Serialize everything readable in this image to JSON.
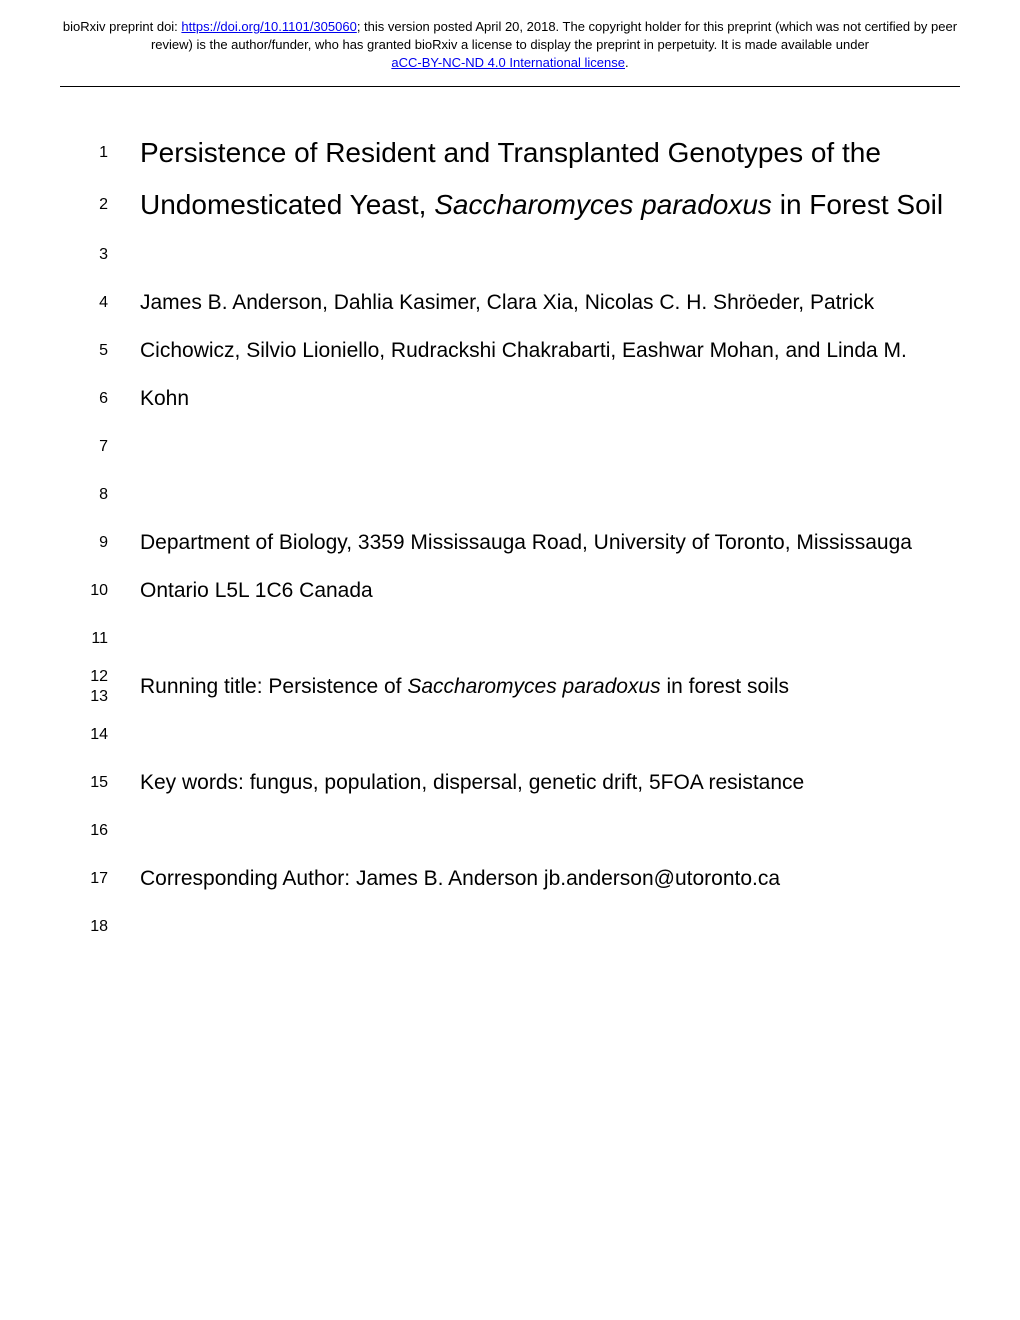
{
  "header": {
    "prefix": "bioRxiv preprint doi: ",
    "doi_url": "https://doi.org/10.1101/305060",
    "version_text": "; this version posted April 20, 2018. ",
    "copyright_text": "The copyright holder for this preprint (which was not certified by peer review) is the author/funder, who has granted bioRxiv a license to display the preprint in perpetuity. It is made available under ",
    "license_text": "aCC-BY-NC-ND 4.0 International license",
    "period": "."
  },
  "lines": {
    "l1": {
      "num": "1",
      "text": "Persistence of Resident and Transplanted Genotypes of the"
    },
    "l2": {
      "num": "2",
      "text_before": "Undomesticated Yeast, ",
      "italic": "Saccharomyces paradoxus",
      "text_after": " in Forest Soil"
    },
    "l3": {
      "num": "3",
      "text": ""
    },
    "l4": {
      "num": "4",
      "text": "James B. Anderson, Dahlia Kasimer, Clara Xia, Nicolas C.  H. Shröeder, Patrick"
    },
    "l5": {
      "num": "5",
      "text": "Cichowicz, Silvio Lioniello, Rudrackshi Chakrabarti, Eashwar Mohan, and Linda M."
    },
    "l6": {
      "num": "6",
      "text": "Kohn"
    },
    "l7": {
      "num": "7",
      "text": ""
    },
    "l8": {
      "num": "8",
      "text": ""
    },
    "l9": {
      "num": "9",
      "text": "Department of Biology, 3359 Mississauga Road, University of Toronto, Mississauga"
    },
    "l10": {
      "num": "10",
      "text": "Ontario L5L 1C6 Canada"
    },
    "l11": {
      "num": "11",
      "text": ""
    },
    "l12_13": {
      "num1": "12",
      "num2": "13",
      "text_before": "Running title: Persistence of ",
      "italic": "Saccharomyces paradoxus",
      "text_after": " in forest soils"
    },
    "l14": {
      "num": "14",
      "text": ""
    },
    "l15": {
      "num": "15",
      "text": "Key words: fungus, population, dispersal, genetic drift, 5FOA resistance"
    },
    "l16": {
      "num": "16",
      "text": ""
    },
    "l17": {
      "num": "17",
      "text": "Corresponding Author:  James B. Anderson  jb.anderson@utoronto.ca"
    },
    "l18": {
      "num": "18",
      "text": ""
    }
  }
}
